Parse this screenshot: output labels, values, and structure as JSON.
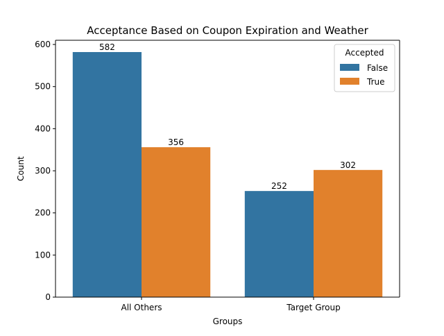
{
  "chart_data": {
    "type": "bar",
    "title": "Acceptance Based on Coupon Expiration and Weather",
    "xlabel": "Groups",
    "ylabel": "Count",
    "categories": [
      "All Others",
      "Target Group"
    ],
    "series": [
      {
        "name": "False",
        "values": [
          582,
          252
        ],
        "color": "#3274a1"
      },
      {
        "name": "True",
        "values": [
          356,
          302
        ],
        "color": "#e1812c"
      }
    ],
    "ylim": [
      0,
      610
    ],
    "yticks": [
      0,
      100,
      200,
      300,
      400,
      500,
      600
    ],
    "legend": {
      "title": "Accepted",
      "position": "top-right"
    },
    "data_labels": true,
    "grid": false
  }
}
